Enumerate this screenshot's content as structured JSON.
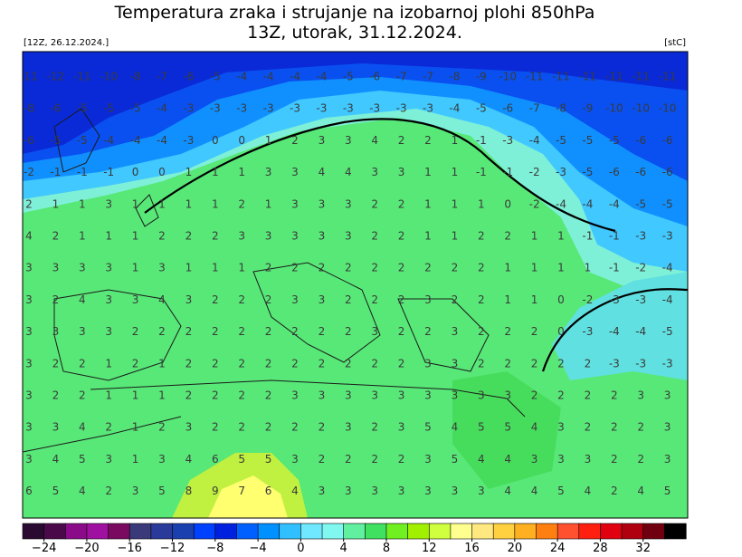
{
  "header": {
    "title": "Temperatura zraka i strujanje na izobarnoj plohi 850hPa",
    "subtitle": "13Z, utorak, 31.12.2024.",
    "run_label": "[12Z, 26.12.2024.]",
    "unit_label": "[stC]"
  },
  "map": {
    "grid_rows": [
      [
        -11,
        -12,
        -11,
        -10,
        -8,
        -7,
        -6,
        -5,
        -4,
        -4,
        -4,
        -4,
        -5,
        -6,
        -7,
        -7,
        -8,
        -9,
        -10,
        -11,
        -11,
        -11,
        -11,
        -11,
        -11
      ],
      [
        -8,
        -6,
        -5,
        -5,
        -5,
        -4,
        -3,
        -3,
        -3,
        -3,
        -3,
        -3,
        -3,
        -3,
        -3,
        -3,
        -4,
        -5,
        -6,
        -7,
        -8,
        -9,
        -10,
        -10,
        -10
      ],
      [
        -6,
        -5,
        -5,
        -4,
        -4,
        -4,
        -3,
        0,
        0,
        1,
        2,
        3,
        3,
        4,
        2,
        2,
        1,
        -1,
        -3,
        -4,
        -5,
        -5,
        -5,
        -6,
        -6
      ],
      [
        -2,
        -1,
        -1,
        -1,
        0,
        0,
        1,
        1,
        1,
        3,
        3,
        4,
        4,
        3,
        3,
        1,
        1,
        -1,
        -1,
        -2,
        -3,
        -5,
        -6,
        -6,
        -6
      ],
      [
        2,
        1,
        1,
        3,
        1,
        1,
        1,
        1,
        2,
        1,
        3,
        3,
        3,
        2,
        2,
        1,
        1,
        1,
        0,
        -2,
        -4,
        -4,
        -4,
        -5,
        -5
      ],
      [
        4,
        2,
        1,
        1,
        1,
        2,
        2,
        2,
        3,
        3,
        3,
        3,
        3,
        2,
        2,
        1,
        1,
        2,
        2,
        1,
        1,
        -1,
        -1,
        -3,
        -3
      ],
      [
        3,
        3,
        3,
        3,
        1,
        3,
        1,
        1,
        1,
        2,
        2,
        2,
        2,
        2,
        2,
        2,
        2,
        2,
        1,
        1,
        1,
        1,
        -1,
        -2,
        -4
      ],
      [
        3,
        2,
        4,
        3,
        3,
        4,
        3,
        2,
        2,
        2,
        3,
        3,
        2,
        2,
        2,
        3,
        2,
        2,
        1,
        1,
        0,
        -2,
        -3,
        -3,
        -4
      ],
      [
        3,
        3,
        3,
        3,
        2,
        2,
        2,
        2,
        2,
        2,
        2,
        2,
        2,
        3,
        2,
        2,
        3,
        2,
        2,
        2,
        0,
        -3,
        -4,
        -4,
        -5
      ],
      [
        3,
        2,
        2,
        1,
        2,
        1,
        2,
        2,
        2,
        2,
        2,
        2,
        2,
        2,
        2,
        3,
        3,
        2,
        2,
        2,
        2,
        2,
        -3,
        -3,
        -3
      ],
      [
        3,
        2,
        2,
        1,
        1,
        1,
        2,
        2,
        2,
        2,
        3,
        3,
        3,
        3,
        3,
        3,
        3,
        3,
        3,
        2,
        2,
        2,
        2,
        3,
        3
      ],
      [
        3,
        3,
        4,
        2,
        1,
        2,
        3,
        2,
        2,
        2,
        2,
        2,
        3,
        2,
        3,
        5,
        4,
        5,
        5,
        4,
        3,
        2,
        2,
        2,
        3
      ],
      [
        3,
        4,
        5,
        3,
        1,
        3,
        4,
        6,
        5,
        5,
        3,
        2,
        2,
        2,
        2,
        3,
        5,
        4,
        4,
        3,
        3,
        3,
        2,
        2,
        3
      ],
      [
        6,
        5,
        4,
        2,
        3,
        5,
        8,
        9,
        7,
        6,
        4,
        3,
        3,
        3,
        3,
        3,
        3,
        3,
        4,
        4,
        5,
        4,
        2,
        4,
        5
      ]
    ]
  },
  "colorbar": {
    "lim": [
      -26,
      36
    ],
    "colors": [
      "#2a0a30",
      "#4a0a4a",
      "#8a0a8a",
      "#a010a0",
      "#7a0a60",
      "#3a3a7a",
      "#2a3a9a",
      "#1a40b0",
      "#0040ff",
      "#0020e0",
      "#0060ff",
      "#0090ff",
      "#30c0ff",
      "#70e8ff",
      "#80f8f0",
      "#60f0a0",
      "#40e060",
      "#70f020",
      "#a0f000",
      "#d0ff40",
      "#ffff90",
      "#ffe880",
      "#ffd040",
      "#ffb020",
      "#ff8010",
      "#ff5030",
      "#ff2010",
      "#e00010",
      "#b00010",
      "#700010",
      "#000000"
    ],
    "ticks": [
      {
        "value": -24,
        "label": "−24"
      },
      {
        "value": -20,
        "label": "−20"
      },
      {
        "value": -16,
        "label": "−16"
      },
      {
        "value": -12,
        "label": "−12"
      },
      {
        "value": -8,
        "label": "−8"
      },
      {
        "value": -4,
        "label": "−4"
      },
      0,
      4,
      8,
      12,
      16,
      20,
      24,
      28,
      32
    ]
  }
}
